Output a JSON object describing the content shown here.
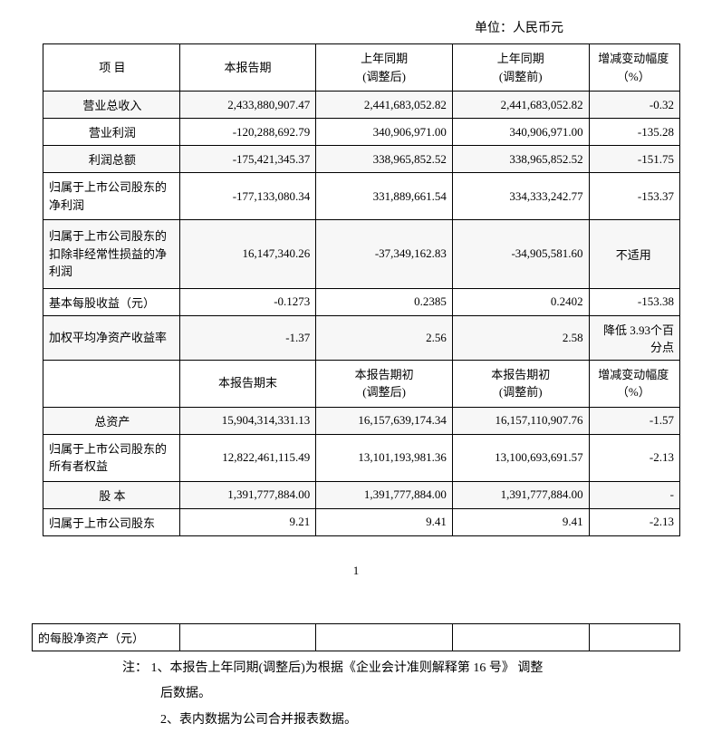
{
  "unit_label": "单位：人民币元",
  "headers": {
    "item": "项  目",
    "current": "本报告期",
    "prior_adj": "上年同期 (调整后)",
    "prior_orig": "上年同期 (调整前)",
    "change": "增减变动幅度（%）",
    "current_end": "本报告期末",
    "period_begin_adj": "本报告期初 (调整后)",
    "period_begin_orig": "本报告期初 (调整前)",
    "change2": "增减变动幅度（%）"
  },
  "rows1": [
    {
      "item": "营业总收入",
      "center": true,
      "c": "2,433,880,907.47",
      "pa": "2,441,683,052.82",
      "po": "2,441,683,052.82",
      "ch": "-0.32"
    },
    {
      "item": "营业利润",
      "center": true,
      "c": "-120,288,692.79",
      "pa": "340,906,971.00",
      "po": "340,906,971.00",
      "ch": "-135.28"
    },
    {
      "item": "利润总额",
      "center": true,
      "c": "-175,421,345.37",
      "pa": "338,965,852.52",
      "po": "338,965,852.52",
      "ch": "-151.75"
    },
    {
      "item": "归属于上市公司股东的净利润",
      "center": false,
      "tall": true,
      "c": "-177,133,080.34",
      "pa": "331,889,661.54",
      "po": "334,333,242.77",
      "ch": "-153.37"
    },
    {
      "item": "归属于上市公司股东的扣除非经常性损益的净利润",
      "center": false,
      "multi": true,
      "c": "16,147,340.26",
      "pa": "-37,349,162.83",
      "po": "-34,905,581.60",
      "ch": "不适用",
      "ch_center": true
    },
    {
      "item": "基本每股收益（元）",
      "center": false,
      "c": "-0.1273",
      "pa": "0.2385",
      "po": "0.2402",
      "ch": "-153.38"
    },
    {
      "item": "加权平均净资产收益率",
      "center": false,
      "tall": true,
      "c": "-1.37",
      "pa": "2.56",
      "po": "2.58",
      "ch": "降低 3.93个百分点",
      "ch_center": false
    }
  ],
  "rows2": [
    {
      "item": "总资产",
      "center": true,
      "c": "15,904,314,331.13",
      "pa": "16,157,639,174.34",
      "po": "16,157,110,907.76",
      "ch": "-1.57"
    },
    {
      "item": "归属于上市公司股东的所有者权益",
      "center": false,
      "tall": true,
      "c": "12,822,461,115.49",
      "pa": "13,101,193,981.36",
      "po": "13,100,693,691.57",
      "ch": "-2.13"
    },
    {
      "item": "股  本",
      "center": true,
      "c": "1,391,777,884.00",
      "pa": "1,391,777,884.00",
      "po": "1,391,777,884.00",
      "ch": "-"
    },
    {
      "item": "归属于上市公司股东",
      "center": false,
      "c": "9.21",
      "pa": "9.41",
      "po": "9.41",
      "ch": "-2.13"
    }
  ],
  "continuation_item": "的每股净资产（元）",
  "page_number": "1",
  "notes": {
    "n1a": "注：  1、本报告上年同期(调整后)为根据《企业会计准则解释第 16 号》  调整",
    "n1b": "后数据。",
    "n2": "2、表内数据为公司合并报表数据。"
  }
}
